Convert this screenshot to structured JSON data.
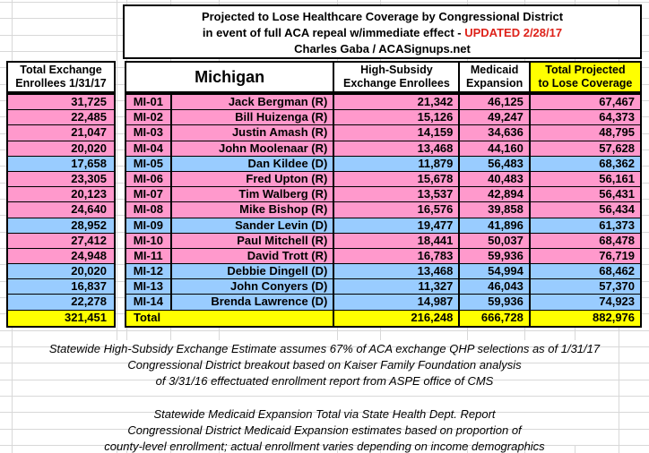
{
  "colors": {
    "republican_row": "#FF99CC",
    "democrat_row": "#99CCFF",
    "total_row": "#FFFF00",
    "header_highlight": "#FFFF00",
    "updated_red": "#DE221A",
    "grid_line": "#D8D8D8"
  },
  "headers": {
    "total_exchange_line1": "Total Exchange",
    "total_exchange_line2": "Enrollees 1/31/17",
    "high_subsidy_line1": "High-Subsidy",
    "high_subsidy_line2": "Exchange Enrollees",
    "medicaid_line1": "Medicaid",
    "medicaid_line2": "Expansion",
    "total_lose_line1": "Total Projected",
    "total_lose_line2": "to Lose Coverage"
  },
  "chart_data": {
    "type": "table",
    "title": "Projected to Lose Healthcare Coverage by Congressional District",
    "subtitle_prefix": "in event of full ACA repeal w/immediate effect - ",
    "subtitle_updated": "UPDATED 2/28/17",
    "byline": "Charles Gaba / ACASignups.net",
    "state": "Michigan",
    "columns": [
      "Total Exchange Enrollees 1/31/17",
      "District",
      "Representative",
      "High-Subsidy Exchange Enrollees",
      "Medicaid Expansion",
      "Total Projected to Lose Coverage"
    ],
    "rows": [
      {
        "district": "MI-01",
        "representative": "Jack Bergman (R)",
        "party": "R",
        "total_exchange": "31,725",
        "high_subsidy": "21,342",
        "medicaid_expansion": "46,125",
        "total_lose": "67,467"
      },
      {
        "district": "MI-02",
        "representative": "Bill Huizenga (R)",
        "party": "R",
        "total_exchange": "22,485",
        "high_subsidy": "15,126",
        "medicaid_expansion": "49,247",
        "total_lose": "64,373"
      },
      {
        "district": "MI-03",
        "representative": "Justin Amash (R)",
        "party": "R",
        "total_exchange": "21,047",
        "high_subsidy": "14,159",
        "medicaid_expansion": "34,636",
        "total_lose": "48,795"
      },
      {
        "district": "MI-04",
        "representative": "John Moolenaar (R)",
        "party": "R",
        "total_exchange": "20,020",
        "high_subsidy": "13,468",
        "medicaid_expansion": "44,160",
        "total_lose": "57,628"
      },
      {
        "district": "MI-05",
        "representative": "Dan Kildee (D)",
        "party": "D",
        "total_exchange": "17,658",
        "high_subsidy": "11,879",
        "medicaid_expansion": "56,483",
        "total_lose": "68,362"
      },
      {
        "district": "MI-06",
        "representative": "Fred Upton (R)",
        "party": "R",
        "total_exchange": "23,305",
        "high_subsidy": "15,678",
        "medicaid_expansion": "40,483",
        "total_lose": "56,161"
      },
      {
        "district": "MI-07",
        "representative": "Tim Walberg (R)",
        "party": "R",
        "total_exchange": "20,123",
        "high_subsidy": "13,537",
        "medicaid_expansion": "42,894",
        "total_lose": "56,431"
      },
      {
        "district": "MI-08",
        "representative": "Mike Bishop (R)",
        "party": "R",
        "total_exchange": "24,640",
        "high_subsidy": "16,576",
        "medicaid_expansion": "39,858",
        "total_lose": "56,434"
      },
      {
        "district": "MI-09",
        "representative": "Sander Levin (D)",
        "party": "D",
        "total_exchange": "28,952",
        "high_subsidy": "19,477",
        "medicaid_expansion": "41,896",
        "total_lose": "61,373"
      },
      {
        "district": "MI-10",
        "representative": "Paul Mitchell (R)",
        "party": "R",
        "total_exchange": "27,412",
        "high_subsidy": "18,441",
        "medicaid_expansion": "50,037",
        "total_lose": "68,478"
      },
      {
        "district": "MI-11",
        "representative": "David Trott (R)",
        "party": "R",
        "total_exchange": "24,948",
        "high_subsidy": "16,783",
        "medicaid_expansion": "59,936",
        "total_lose": "76,719"
      },
      {
        "district": "MI-12",
        "representative": "Debbie Dingell (D)",
        "party": "D",
        "total_exchange": "20,020",
        "high_subsidy": "13,468",
        "medicaid_expansion": "54,994",
        "total_lose": "68,462"
      },
      {
        "district": "MI-13",
        "representative": "John Conyers (D)",
        "party": "D",
        "total_exchange": "16,837",
        "high_subsidy": "11,327",
        "medicaid_expansion": "46,043",
        "total_lose": "57,370"
      },
      {
        "district": "MI-14",
        "representative": "Brenda Lawrence (D)",
        "party": "D",
        "total_exchange": "22,278",
        "high_subsidy": "14,987",
        "medicaid_expansion": "59,936",
        "total_lose": "74,923"
      }
    ],
    "total_row": {
      "label": "Total",
      "total_exchange": "321,451",
      "high_subsidy": "216,248",
      "medicaid_expansion": "666,728",
      "total_lose": "882,976"
    },
    "notes_group1": [
      "Statewide High-Subsidy Exchange Estimate assumes 67% of ACA exchange QHP selections as of 1/31/17",
      "Congressional District breakout based on Kaiser Family Foundation analysis",
      "of 3/31/16 effectuated enrollment report from ASPE office of CMS"
    ],
    "notes_group2": [
      "Statewide Medicaid Expansion Total via State Health Dept. Report",
      "Congressional District Medicaid Expansion estimates based on proportion of",
      "county-level enrollment; actual enrollment varies depending on income demographics"
    ]
  }
}
